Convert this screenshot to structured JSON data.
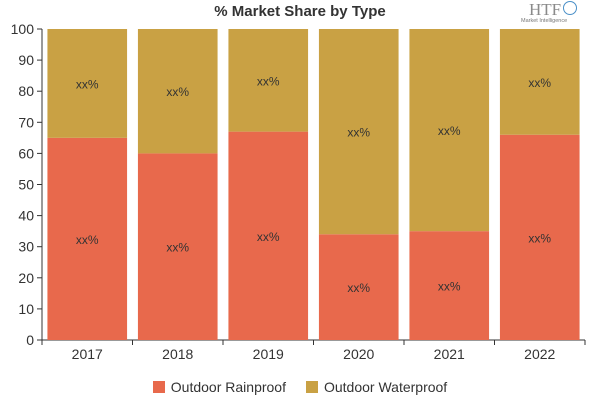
{
  "title": "% Market Share by Type",
  "logo": {
    "mark": "HTF",
    "subtitle": "Market Intelligence"
  },
  "chart_data": {
    "type": "bar",
    "stacked": true,
    "categories": [
      "2017",
      "2018",
      "2019",
      "2020",
      "2021",
      "2022"
    ],
    "series": [
      {
        "name": "Outdoor Rainproof",
        "color": "#e8694c",
        "values": [
          65,
          60,
          67,
          34,
          35,
          66
        ],
        "labels": [
          "xx%",
          "xx%",
          "xx%",
          "xx%",
          "xx%",
          "xx%"
        ]
      },
      {
        "name": "Outdoor Waterproof",
        "color": "#c9a144",
        "values": [
          35,
          40,
          33,
          66,
          65,
          34
        ],
        "labels": [
          "xx%",
          "xx%",
          "xx%",
          "xx%",
          "xx%",
          "xx%"
        ]
      }
    ],
    "ylim": [
      0,
      100
    ],
    "yticks": [
      0,
      10,
      20,
      30,
      40,
      50,
      60,
      70,
      80,
      90,
      100
    ],
    "xlabel": "",
    "ylabel": "",
    "grid": false,
    "legend_position": "bottom"
  }
}
